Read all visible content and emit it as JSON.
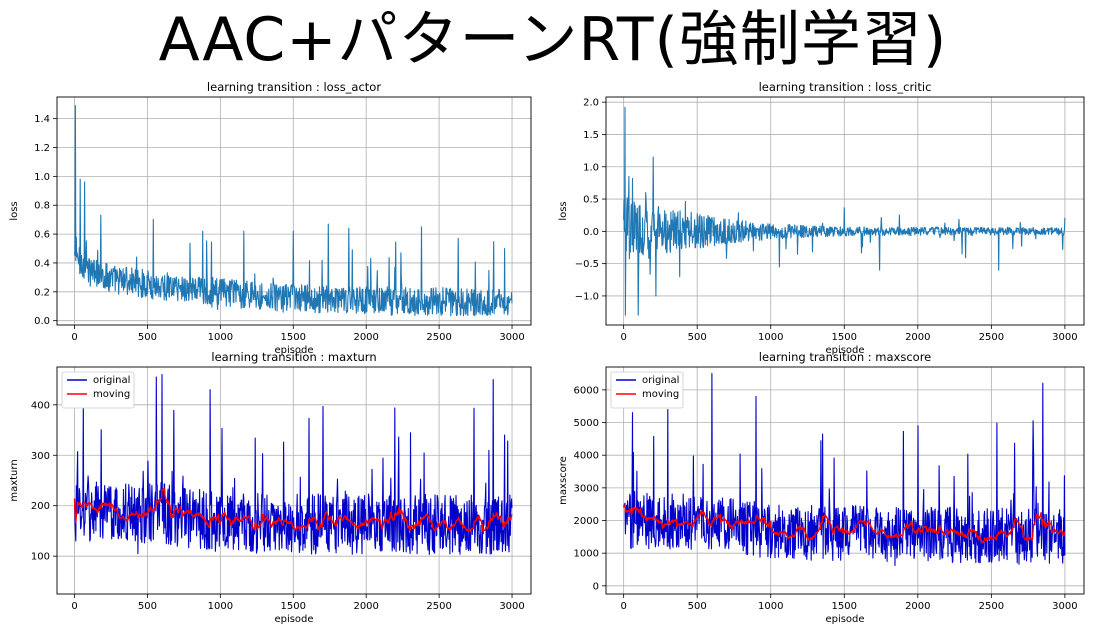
{
  "slide": {
    "title": "AAC+パターンRT(強制学習)"
  },
  "colors": {
    "line": "#1f77b4",
    "original": "#0000cc",
    "moving": "#ff0000",
    "grid": "#b0b0b0"
  },
  "chart_data": [
    {
      "type": "line",
      "title": "learning transition : loss_actor",
      "xlabel": "episode",
      "ylabel": "loss",
      "xlim": [
        -120,
        3130
      ],
      "ylim": [
        -0.03,
        1.55
      ],
      "xticks": [
        0,
        500,
        1000,
        1500,
        2000,
        2500,
        3000
      ],
      "yticks": [
        0.0,
        0.2,
        0.4,
        0.6,
        0.8,
        1.0,
        1.2,
        1.4
      ],
      "ytick_labels": [
        "0.0",
        "0.2",
        "0.4",
        "0.6",
        "0.8",
        "1.0",
        "1.2",
        "1.4"
      ],
      "grid": true,
      "legend": null,
      "series": [
        {
          "baseline": [
            [
              0,
              0.45
            ],
            [
              100,
              0.34
            ],
            [
              300,
              0.28
            ],
            [
              600,
              0.24
            ],
            [
              1000,
              0.2
            ],
            [
              1500,
              0.15
            ],
            [
              2000,
              0.14
            ],
            [
              3000,
              0.12
            ]
          ],
          "noise": 0.1,
          "spike_prob": 0.06,
          "spike_amp": 0.22,
          "min": 0.03,
          "peaks": [
            [
              5,
              1.49
            ],
            [
              12,
              0.58
            ],
            [
              40,
              0.98
            ],
            [
              70,
              0.96
            ],
            [
              180,
              0.73
            ],
            [
              880,
              0.62
            ],
            [
              1160,
              0.62
            ],
            [
              1500,
              0.62
            ],
            [
              1740,
              0.67
            ],
            [
              1880,
              0.64
            ],
            [
              2380,
              0.65
            ],
            [
              2630,
              0.57
            ],
            [
              2950,
              0.5
            ]
          ]
        }
      ]
    },
    {
      "type": "line",
      "title": "learning transition : loss_critic",
      "xlabel": "episode",
      "ylabel": "loss",
      "xlim": [
        -120,
        3130
      ],
      "ylim": [
        -1.45,
        2.08
      ],
      "xticks": [
        0,
        500,
        1000,
        1500,
        2000,
        2500,
        3000
      ],
      "yticks": [
        -1.0,
        -0.5,
        0.0,
        0.5,
        1.0,
        1.5,
        2.0
      ],
      "ytick_labels": [
        "−1.0",
        "−0.5",
        "0.0",
        "0.5",
        "1.0",
        "1.5",
        "2.0"
      ],
      "grid": true,
      "legend": null,
      "series": [
        {
          "baseline": [
            [
              0,
              0.0
            ],
            [
              3000,
              0.0
            ]
          ],
          "noise_env": [
            [
              0,
              0.55
            ],
            [
              300,
              0.35
            ],
            [
              700,
              0.2
            ],
            [
              1000,
              0.12
            ],
            [
              1500,
              0.07
            ],
            [
              3000,
              0.06
            ]
          ],
          "spike_prob": 0.04,
          "spike_amp": 0.35,
          "peaks": [
            [
              8,
              1.92
            ],
            [
              12,
              -1.3
            ],
            [
              35,
              0.85
            ],
            [
              60,
              0.82
            ],
            [
              100,
              -1.3
            ],
            [
              150,
              0.6
            ],
            [
              200,
              1.15
            ],
            [
              220,
              -1.0
            ],
            [
              380,
              -0.7
            ],
            [
              1060,
              -0.55
            ],
            [
              1740,
              -0.6
            ],
            [
              2300,
              -0.35
            ],
            [
              2550,
              -0.6
            ]
          ]
        }
      ]
    },
    {
      "type": "line",
      "title": "learning transition : maxturn",
      "xlabel": "episode",
      "ylabel": "maxturn",
      "xlim": [
        -120,
        3130
      ],
      "ylim": [
        25,
        475
      ],
      "xticks": [
        0,
        500,
        1000,
        1500,
        2000,
        2500,
        3000
      ],
      "yticks": [
        100,
        200,
        300,
        400
      ],
      "ytick_labels": [
        "100",
        "200",
        "300",
        "400"
      ],
      "grid": true,
      "legend": {
        "position": "top-left"
      },
      "series": [
        {
          "name": "original",
          "color": "#0000cc",
          "baseline": [
            [
              0,
              190
            ],
            [
              600,
              185
            ],
            [
              1000,
              165
            ],
            [
              3000,
              162
            ]
          ],
          "noise": 60,
          "spike_prob": 0.05,
          "spike_amp": 120,
          "min": 40,
          "peaks": [
            [
              60,
              400
            ],
            [
              560,
              455
            ],
            [
              600,
              460
            ],
            [
              930,
              430
            ],
            [
              2870,
              450
            ]
          ]
        },
        {
          "name": "moving",
          "color": "#ff0000",
          "moving_of": 0,
          "window": 20
        }
      ]
    },
    {
      "type": "line",
      "title": "learning transition : maxscore",
      "xlabel": "episode",
      "ylabel": "maxscore",
      "xlim": [
        -120,
        3130
      ],
      "ylim": [
        -250,
        6700
      ],
      "xticks": [
        0,
        500,
        1000,
        1500,
        2000,
        2500,
        3000
      ],
      "yticks": [
        0,
        1000,
        2000,
        3000,
        4000,
        5000,
        6000
      ],
      "ytick_labels": [
        "0",
        "1000",
        "2000",
        "3000",
        "4000",
        "5000",
        "6000"
      ],
      "grid": true,
      "legend": {
        "position": "top-left"
      },
      "series": [
        {
          "name": "original",
          "color": "#0000cc",
          "baseline": [
            [
              0,
              2000
            ],
            [
              600,
              1950
            ],
            [
              1000,
              1650
            ],
            [
              3000,
              1500
            ]
          ],
          "noise": 850,
          "spike_prob": 0.05,
          "spike_amp": 1800,
          "min": 150,
          "peaks": [
            [
              60,
              5300
            ],
            [
              300,
              5400
            ],
            [
              600,
              6500
            ],
            [
              900,
              5800
            ],
            [
              2000,
              4900
            ],
            [
              2850,
              6200
            ]
          ]
        },
        {
          "name": "moving",
          "color": "#ff0000",
          "moving_of": 0,
          "window": 20
        }
      ]
    }
  ]
}
